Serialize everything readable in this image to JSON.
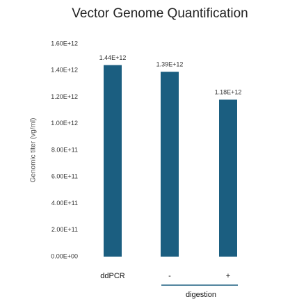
{
  "chart_data": {
    "type": "bar",
    "title": "Vector Genome Quantification",
    "y_label": "Genomic titer (vg/ml)",
    "categories": [
      "ddPCR",
      "-",
      "+"
    ],
    "group_label": "digestion",
    "values": [
      1440000000000,
      1390000000000,
      1180000000000
    ],
    "value_labels": [
      "1.44E+12",
      "1.39E+12",
      "1.18E+12"
    ],
    "color": "#1b5e80",
    "ylim": [
      0,
      1600000000000
    ],
    "yticks": [
      {
        "value": 0,
        "label": "0.00E+00"
      },
      {
        "value": 200000000000,
        "label": "2.00E+11"
      },
      {
        "value": 400000000000,
        "label": "4.00E+11"
      },
      {
        "value": 600000000000,
        "label": "6.00E+11"
      },
      {
        "value": 800000000000,
        "label": "8.00E+11"
      },
      {
        "value": 1000000000000,
        "label": "1.00E+12"
      },
      {
        "value": 1200000000000,
        "label": "1.20E+12"
      },
      {
        "value": 1400000000000,
        "label": "1.40E+12"
      },
      {
        "value": 1600000000000,
        "label": "1.60E+12"
      }
    ],
    "grid": false
  }
}
